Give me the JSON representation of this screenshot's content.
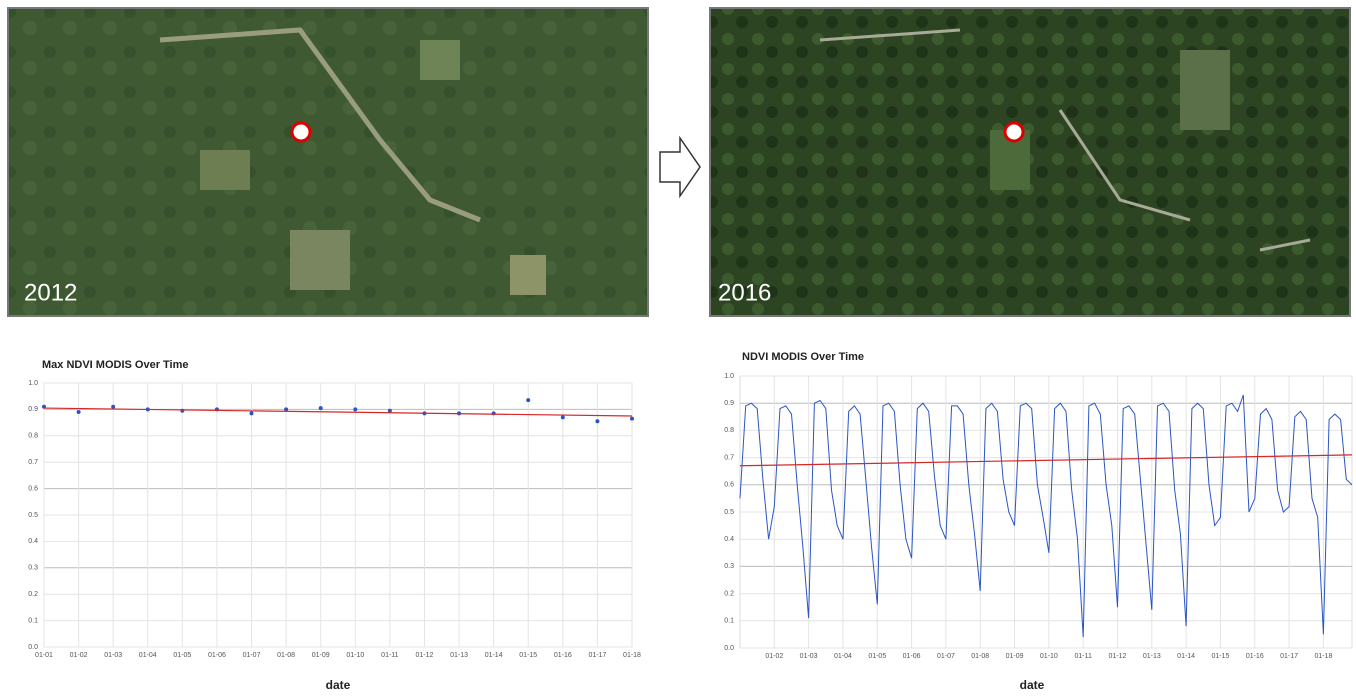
{
  "images": [
    {
      "label": "2012"
    },
    {
      "label": "2016"
    }
  ],
  "chart_data": [
    {
      "type": "scatter",
      "title": "Max NDVI MODIS Over Time",
      "xlabel": "date",
      "categories": [
        "01-01",
        "01-02",
        "01-03",
        "01-04",
        "01-05",
        "01-06",
        "01-07",
        "01-08",
        "01-09",
        "01-10",
        "01-11",
        "01-12",
        "01-13",
        "01-14",
        "01-15",
        "01-16",
        "01-17",
        "01-18"
      ],
      "series": [
        {
          "color": "#2a55c4",
          "values": [
            0.91,
            0.89,
            0.91,
            0.9,
            0.895,
            0.9,
            0.885,
            0.9,
            0.905,
            0.9,
            0.895,
            0.885,
            0.885,
            0.885,
            0.935,
            0.87,
            0.855,
            0.865
          ]
        }
      ],
      "trendline": {
        "color": "#d62728",
        "values": [
          0.905,
          0.875
        ]
      },
      "ylim": [
        0,
        1
      ],
      "yticks": [
        {
          "value": 0,
          "label": "0.0"
        },
        0.1,
        0.2,
        0.3,
        0.4,
        0.5,
        0.6,
        0.7,
        0.8,
        0.9,
        {
          "value": 1,
          "label": "1.0"
        }
      ],
      "grid": true
    },
    {
      "type": "line",
      "title": "NDVI MODIS Over Time",
      "xlabel": "date",
      "categories": [
        null,
        null,
        null,
        null,
        null,
        null,
        "01-02",
        null,
        null,
        null,
        null,
        null,
        "01-03",
        null,
        null,
        null,
        null,
        null,
        "01-04",
        null,
        null,
        null,
        null,
        null,
        "01-05",
        null,
        null,
        null,
        null,
        null,
        "01-06",
        null,
        null,
        null,
        null,
        null,
        "01-07",
        null,
        null,
        null,
        null,
        null,
        "01-08",
        null,
        null,
        null,
        null,
        null,
        "01-09",
        null,
        null,
        null,
        null,
        null,
        "01-10",
        null,
        null,
        null,
        null,
        null,
        "01-11",
        null,
        null,
        null,
        null,
        null,
        "01-12",
        null,
        null,
        null,
        null,
        null,
        "01-13",
        null,
        null,
        null,
        null,
        null,
        "01-14",
        null,
        null,
        null,
        null,
        null,
        "01-15",
        null,
        null,
        null,
        null,
        null,
        "01-16",
        null,
        null,
        null,
        null,
        null,
        "01-17",
        null,
        null,
        null,
        null,
        null,
        "01-18",
        null,
        null,
        null,
        null,
        null
      ],
      "series": [
        {
          "color": "#2a55c4",
          "values": [
            0.55,
            0.89,
            0.9,
            0.88,
            0.62,
            0.4,
            0.52,
            0.88,
            0.89,
            0.86,
            0.6,
            0.37,
            0.11,
            0.9,
            0.91,
            0.88,
            0.58,
            0.45,
            0.4,
            0.87,
            0.89,
            0.86,
            0.62,
            0.37,
            0.16,
            0.89,
            0.9,
            0.87,
            0.6,
            0.4,
            0.33,
            0.88,
            0.9,
            0.87,
            0.63,
            0.45,
            0.4,
            0.89,
            0.89,
            0.86,
            0.6,
            0.42,
            0.21,
            0.88,
            0.9,
            0.87,
            0.62,
            0.5,
            0.45,
            0.89,
            0.9,
            0.88,
            0.6,
            0.48,
            0.35,
            0.88,
            0.9,
            0.87,
            0.58,
            0.4,
            0.04,
            0.89,
            0.9,
            0.86,
            0.6,
            0.45,
            0.15,
            0.88,
            0.89,
            0.86,
            0.62,
            0.38,
            0.14,
            0.89,
            0.9,
            0.87,
            0.58,
            0.42,
            0.08,
            0.88,
            0.9,
            0.88,
            0.6,
            0.45,
            0.48,
            0.89,
            0.9,
            0.87,
            0.93,
            0.5,
            0.55,
            0.86,
            0.88,
            0.84,
            0.58,
            0.5,
            0.52,
            0.85,
            0.87,
            0.84,
            0.55,
            0.48,
            0.05,
            0.84,
            0.86,
            0.84,
            0.62,
            0.6
          ]
        }
      ],
      "trendline": {
        "color": "#d62728",
        "values": [
          0.67,
          0.71
        ]
      },
      "ylim": [
        0,
        1
      ],
      "yticks": [
        {
          "value": 0,
          "label": "0.0"
        },
        0.1,
        0.2,
        0.3,
        0.4,
        0.5,
        0.6,
        0.7,
        0.8,
        0.9,
        {
          "value": 1,
          "label": "1.0"
        }
      ],
      "grid": true
    }
  ]
}
